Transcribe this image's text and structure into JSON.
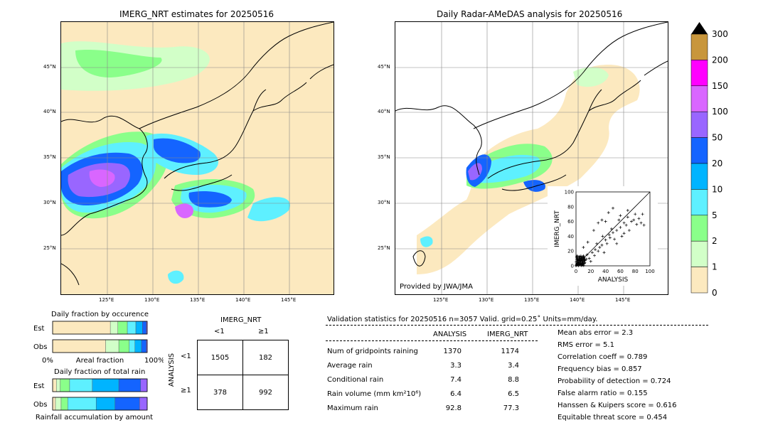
{
  "left_panel": {
    "title": "IMERG_NRT estimates for 20250516",
    "lat_ticks": [
      "45°N",
      "40°N",
      "35°N",
      "30°N",
      "25°N"
    ],
    "lon_ticks": [
      "125°E",
      "130°E",
      "135°E",
      "140°E",
      "145°E"
    ]
  },
  "right_panel": {
    "title": "Daily Radar-AMeDAS analysis for 20250516",
    "lat_ticks": [
      "45°N",
      "40°N",
      "35°N",
      "30°N",
      "25°N"
    ],
    "lon_ticks": [
      "125°E",
      "130°E",
      "135°E",
      "140°E",
      "145°E"
    ],
    "credit": "Provided by JWA/JMA"
  },
  "colorbar": {
    "labels": [
      "300",
      "200",
      "150",
      "100",
      "50",
      "20",
      "10",
      "5",
      "2",
      "1",
      "0"
    ],
    "colors": [
      "#c8963c",
      "#ff00ff",
      "#d966ff",
      "#9966ff",
      "#1464ff",
      "#00b4ff",
      "#5ef0ff",
      "#8aff8a",
      "#d2ffc8",
      "#fce9bf"
    ]
  },
  "chart_data": [
    {
      "type": "scatter",
      "xlabel": "ANALYSIS",
      "ylabel": "IMERG_NRT",
      "xlim": [
        0,
        100
      ],
      "ylim": [
        0,
        100
      ],
      "xticks": [
        "0",
        "20",
        "40",
        "60",
        "80",
        "100"
      ],
      "yticks": [
        "0",
        "20",
        "40",
        "60",
        "80",
        "100"
      ],
      "points": [
        [
          2,
          1
        ],
        [
          3,
          4
        ],
        [
          5,
          2
        ],
        [
          6,
          8
        ],
        [
          8,
          3
        ],
        [
          10,
          12
        ],
        [
          12,
          7
        ],
        [
          14,
          9
        ],
        [
          15,
          15
        ],
        [
          18,
          10
        ],
        [
          20,
          6
        ],
        [
          22,
          18
        ],
        [
          25,
          14
        ],
        [
          26,
          22
        ],
        [
          28,
          30
        ],
        [
          30,
          20
        ],
        [
          32,
          25
        ],
        [
          35,
          28
        ],
        [
          36,
          40
        ],
        [
          38,
          18
        ],
        [
          40,
          35
        ],
        [
          42,
          30
        ],
        [
          45,
          42
        ],
        [
          46,
          38
        ],
        [
          48,
          50
        ],
        [
          50,
          45
        ],
        [
          52,
          36
        ],
        [
          55,
          48
        ],
        [
          58,
          62
        ],
        [
          60,
          52
        ],
        [
          62,
          40
        ],
        [
          65,
          58
        ],
        [
          68,
          55
        ],
        [
          70,
          66
        ],
        [
          72,
          48
        ],
        [
          75,
          60
        ],
        [
          78,
          62
        ],
        [
          80,
          70
        ],
        [
          82,
          56
        ],
        [
          85,
          64
        ],
        [
          88,
          58
        ],
        [
          90,
          70
        ],
        [
          92,
          55
        ],
        [
          24,
          48
        ],
        [
          30,
          58
        ],
        [
          35,
          62
        ],
        [
          44,
          72
        ],
        [
          50,
          78
        ],
        [
          16,
          32
        ],
        [
          10,
          25
        ],
        [
          40,
          60
        ],
        [
          55,
          30
        ],
        [
          65,
          44
        ],
        [
          60,
          68
        ],
        [
          70,
          75
        ]
      ]
    },
    {
      "type": "bar",
      "title": "Daily fraction by occurence",
      "categories": [
        "Est",
        "Obs"
      ],
      "series": [
        {
          "name": "0-1",
          "color": "#fce9bf",
          "values": [
            0.61,
            0.56
          ]
        },
        {
          "name": "1-2",
          "color": "#d2ffc8",
          "values": [
            0.08,
            0.14
          ]
        },
        {
          "name": "2-5",
          "color": "#8aff8a",
          "values": [
            0.1,
            0.11
          ]
        },
        {
          "name": "5-10",
          "color": "#5ef0ff",
          "values": [
            0.09,
            0.06
          ]
        },
        {
          "name": "10-20",
          "color": "#00b4ff",
          "values": [
            0.07,
            0.07
          ]
        },
        {
          "name": "20-50",
          "color": "#1464ff",
          "values": [
            0.04,
            0.05
          ]
        },
        {
          "name": "50-100",
          "color": "#9966ff",
          "values": [
            0.01,
            0.01
          ]
        }
      ],
      "xlabel": "Areal fraction",
      "xticks": [
        "0%",
        "100%"
      ]
    },
    {
      "type": "bar",
      "title": "Daily fraction of total rain",
      "categories": [
        "Est",
        "Obs"
      ],
      "series": [
        {
          "name": "0-1",
          "color": "#fce9bf",
          "values": [
            0.04,
            0.03
          ]
        },
        {
          "name": "1-2",
          "color": "#d2ffc8",
          "values": [
            0.04,
            0.06
          ]
        },
        {
          "name": "2-5",
          "color": "#8aff8a",
          "values": [
            0.1,
            0.07
          ]
        },
        {
          "name": "5-10",
          "color": "#5ef0ff",
          "values": [
            0.24,
            0.3
          ]
        },
        {
          "name": "10-20",
          "color": "#00b4ff",
          "values": [
            0.28,
            0.2
          ]
        },
        {
          "name": "20-50",
          "color": "#1464ff",
          "values": [
            0.23,
            0.26
          ]
        },
        {
          "name": "50-100",
          "color": "#9966ff",
          "values": [
            0.07,
            0.08
          ]
        }
      ],
      "xlabel": "Rainfall accumulation by amount"
    },
    {
      "type": "table",
      "title": "IMERG_NRT",
      "col_headers": [
        "<1",
        "≥1"
      ],
      "row_title": "ANALYSIS",
      "row_headers": [
        "<1",
        "≥1"
      ],
      "cells": [
        [
          "1505",
          "182"
        ],
        [
          "378",
          "992"
        ]
      ]
    }
  ],
  "stats": {
    "header": "Validation statistics for 20250516  n=3057 Valid. grid=0.25˚ Units=mm/day.",
    "col_analysis": "ANALYSIS",
    "col_imerg": "IMERG_NRT",
    "rows": [
      {
        "label": "Num of gridpoints raining",
        "analysis": "1370",
        "imerg": "1174"
      },
      {
        "label": "Average rain",
        "analysis": "3.3",
        "imerg": "3.4"
      },
      {
        "label": "Conditional rain",
        "analysis": "7.4",
        "imerg": "8.8"
      },
      {
        "label": "Rain volume (mm km²10⁶)",
        "analysis": "6.4",
        "imerg": "6.5"
      },
      {
        "label": "Maximum rain",
        "analysis": "92.8",
        "imerg": "77.3"
      }
    ],
    "scores": [
      "Mean abs error =    2.3",
      "RMS error =    5.1",
      "Correlation coeff =  0.789",
      "Frequency bias =  0.857",
      "Probability of detection =  0.724",
      "False alarm ratio =  0.155",
      "Hanssen & Kuipers score =  0.616",
      "Equitable threat score =  0.454"
    ]
  }
}
